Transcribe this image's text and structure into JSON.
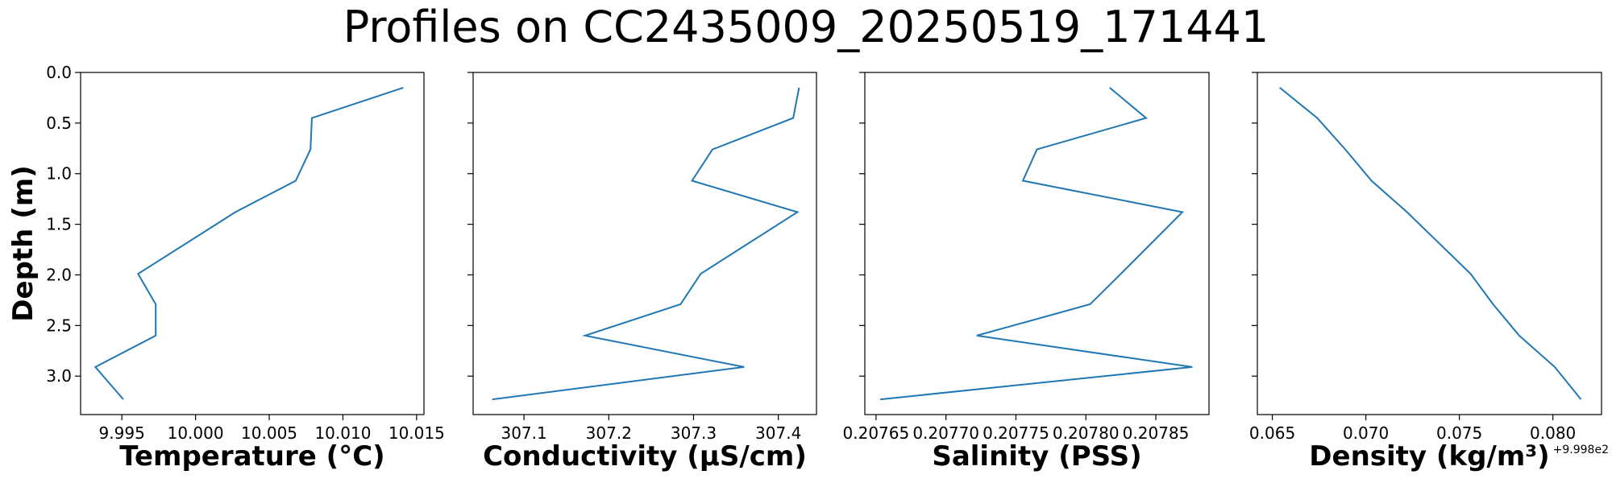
{
  "figure": {
    "title": "Profiles on CC2435009_20250519_171441"
  },
  "chart_data": [
    {
      "type": "line",
      "xlabel": "Temperature (°C)",
      "ylabel": "Depth (m)",
      "xlim": [
        9.9922,
        10.0155
      ],
      "ylim": [
        3.38,
        0.0
      ],
      "y_inverted": true,
      "xticks": [
        9.995,
        10.0,
        10.005,
        10.01,
        10.015
      ],
      "xtick_labels": [
        "9.995",
        "10.000",
        "10.005",
        "10.010",
        "10.015"
      ],
      "yticks": [
        0.0,
        0.5,
        1.0,
        1.5,
        2.0,
        2.5,
        3.0
      ],
      "ytick_labels": [
        "0.0",
        "0.5",
        "1.0",
        "1.5",
        "2.0",
        "2.5",
        "3.0"
      ],
      "show_y_tick_labels": true,
      "offset_text": "",
      "line_color": "#1f77b4",
      "x": [
        10.0141,
        10.0079,
        10.0078,
        10.0068,
        10.0027,
        9.9961,
        9.9973,
        9.9973,
        9.9932,
        9.9951
      ],
      "y": [
        0.15,
        0.45,
        0.76,
        1.07,
        1.38,
        1.99,
        2.29,
        2.6,
        2.91,
        3.23
      ]
    },
    {
      "type": "line",
      "xlabel": "Conductivity (µS/cm)",
      "ylabel": "",
      "xlim": [
        307.04,
        307.445
      ],
      "ylim": [
        3.38,
        0.0
      ],
      "y_inverted": true,
      "xticks": [
        307.1,
        307.2,
        307.3,
        307.4
      ],
      "xtick_labels": [
        "307.1",
        "307.2",
        "307.3",
        "307.4"
      ],
      "yticks": [
        0.0,
        0.5,
        1.0,
        1.5,
        2.0,
        2.5,
        3.0
      ],
      "ytick_labels": [],
      "show_y_tick_labels": false,
      "offset_text": "",
      "line_color": "#1f77b4",
      "x": [
        307.4245,
        307.4175,
        307.3224,
        307.2982,
        307.4226,
        307.3084,
        307.2847,
        307.1721,
        307.3596,
        307.0626
      ],
      "y": [
        0.15,
        0.45,
        0.76,
        1.07,
        1.38,
        1.99,
        2.29,
        2.6,
        2.91,
        3.23
      ]
    },
    {
      "type": "line",
      "xlabel": "Salinity (PSS)",
      "ylabel": "",
      "xlim": [
        0.207642,
        0.207888
      ],
      "ylim": [
        3.38,
        0.0
      ],
      "y_inverted": true,
      "xticks": [
        0.20765,
        0.2077,
        0.20775,
        0.2078,
        0.20785
      ],
      "xtick_labels": [
        "0.20765",
        "0.20770",
        "0.20775",
        "0.20780",
        "0.20785"
      ],
      "yticks": [
        0.0,
        0.5,
        1.0,
        1.5,
        2.0,
        2.5,
        3.0
      ],
      "ytick_labels": [],
      "show_y_tick_labels": false,
      "offset_text": "",
      "line_color": "#1f77b4",
      "x": [
        0.207817,
        0.207843,
        0.207765,
        0.207755,
        0.207869,
        0.207825,
        0.207803,
        0.207722,
        0.207876,
        0.207653
      ],
      "y": [
        0.15,
        0.45,
        0.76,
        1.07,
        1.38,
        1.99,
        2.29,
        2.6,
        2.91,
        3.23
      ]
    },
    {
      "type": "line",
      "xlabel": "Density (kg/m³)",
      "ylabel": "",
      "xlim": [
        0.0642,
        0.0826
      ],
      "ylim": [
        3.38,
        0.0
      ],
      "y_inverted": true,
      "xticks": [
        0.065,
        0.07,
        0.075,
        0.08
      ],
      "xtick_labels": [
        "0.065",
        "0.070",
        "0.075",
        "0.080"
      ],
      "yticks": [
        0.0,
        0.5,
        1.0,
        1.5,
        2.0,
        2.5,
        3.0
      ],
      "ytick_labels": [],
      "show_y_tick_labels": false,
      "offset_text": "+9.998e2",
      "line_color": "#1f77b4",
      "x": [
        0.0654,
        0.0674,
        0.0689,
        0.0703,
        0.0722,
        0.0756,
        0.0768,
        0.0782,
        0.0801,
        0.0815
      ],
      "y": [
        0.15,
        0.45,
        0.76,
        1.07,
        1.38,
        1.99,
        2.29,
        2.6,
        2.91,
        3.23
      ]
    }
  ]
}
